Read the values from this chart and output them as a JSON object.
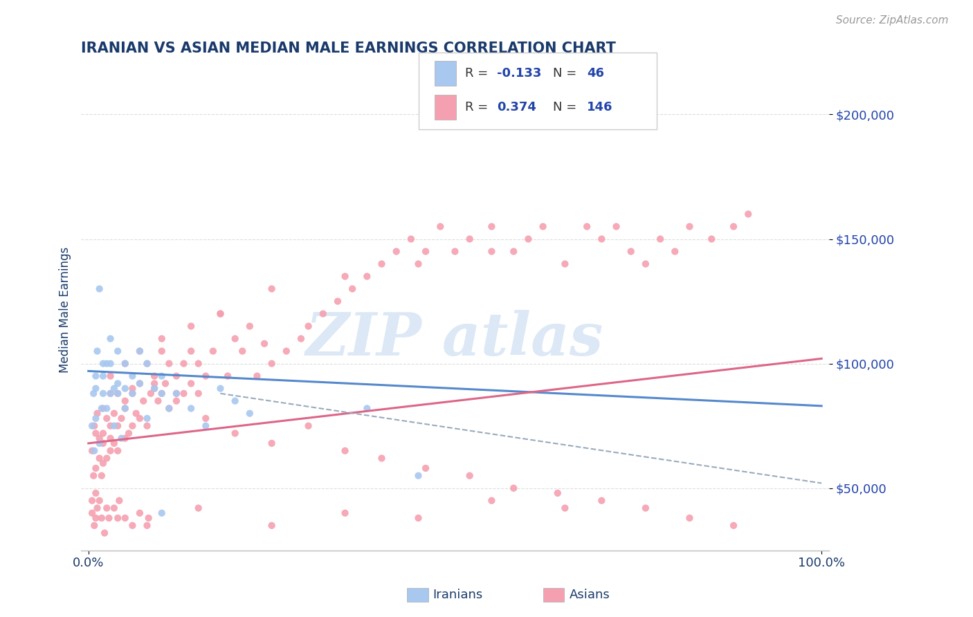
{
  "title": "IRANIAN VS ASIAN MEDIAN MALE EARNINGS CORRELATION CHART",
  "source": "Source: ZipAtlas.com",
  "ylabel": "Median Male Earnings",
  "yticks": [
    50000,
    100000,
    150000,
    200000
  ],
  "ytick_labels": [
    "$50,000",
    "$100,000",
    "$150,000",
    "$200,000"
  ],
  "xtick_labels": [
    "0.0%",
    "100.0%"
  ],
  "xlim": [
    -0.01,
    1.01
  ],
  "ylim": [
    25000,
    218000
  ],
  "legend_R_iranian": "-0.133",
  "legend_N_iranian": "46",
  "legend_R_asian": "0.374",
  "legend_N_asian": "146",
  "iranian_color": "#a8c8f0",
  "asian_color": "#f5a0b0",
  "iranian_line_color": "#5588cc",
  "asian_line_color": "#dd6688",
  "dashed_line_color": "#99aabb",
  "watermark_color": "#dce8f5",
  "title_color": "#1a3a6b",
  "tick_color": "#2244aa",
  "background_color": "#ffffff",
  "grid_color": "#dddddd",
  "iranians_x": [
    0.005,
    0.007,
    0.008,
    0.01,
    0.01,
    0.01,
    0.012,
    0.015,
    0.015,
    0.018,
    0.02,
    0.02,
    0.02,
    0.025,
    0.025,
    0.03,
    0.03,
    0.03,
    0.035,
    0.035,
    0.04,
    0.04,
    0.04,
    0.045,
    0.05,
    0.05,
    0.05,
    0.06,
    0.06,
    0.07,
    0.07,
    0.08,
    0.08,
    0.09,
    0.1,
    0.1,
    0.11,
    0.12,
    0.14,
    0.16,
    0.18,
    0.2,
    0.22,
    0.38,
    0.45,
    0.1
  ],
  "iranians_y": [
    75000,
    88000,
    65000,
    90000,
    78000,
    95000,
    105000,
    68000,
    130000,
    82000,
    100000,
    88000,
    95000,
    100000,
    82000,
    88000,
    100000,
    110000,
    75000,
    90000,
    92000,
    105000,
    88000,
    70000,
    100000,
    90000,
    82000,
    95000,
    88000,
    105000,
    92000,
    78000,
    100000,
    90000,
    88000,
    95000,
    82000,
    88000,
    82000,
    75000,
    90000,
    85000,
    80000,
    82000,
    55000,
    40000
  ],
  "asians_x": [
    0.005,
    0.005,
    0.007,
    0.008,
    0.01,
    0.01,
    0.01,
    0.012,
    0.015,
    0.015,
    0.018,
    0.02,
    0.02,
    0.02,
    0.02,
    0.025,
    0.025,
    0.03,
    0.03,
    0.03,
    0.03,
    0.035,
    0.035,
    0.04,
    0.04,
    0.04,
    0.045,
    0.05,
    0.05,
    0.05,
    0.055,
    0.06,
    0.06,
    0.065,
    0.07,
    0.07,
    0.075,
    0.08,
    0.08,
    0.085,
    0.09,
    0.09,
    0.095,
    0.1,
    0.1,
    0.105,
    0.11,
    0.11,
    0.12,
    0.12,
    0.13,
    0.13,
    0.14,
    0.14,
    0.15,
    0.15,
    0.16,
    0.17,
    0.18,
    0.19,
    0.2,
    0.21,
    0.22,
    0.23,
    0.24,
    0.25,
    0.27,
    0.29,
    0.3,
    0.32,
    0.34,
    0.36,
    0.38,
    0.4,
    0.42,
    0.44,
    0.46,
    0.48,
    0.5,
    0.52,
    0.55,
    0.58,
    0.6,
    0.62,
    0.65,
    0.68,
    0.7,
    0.72,
    0.74,
    0.76,
    0.78,
    0.8,
    0.82,
    0.85,
    0.88,
    0.9,
    0.55,
    0.45,
    0.35,
    0.25,
    0.18,
    0.14,
    0.1,
    0.07,
    0.05,
    0.03,
    0.06,
    0.09,
    0.12,
    0.16,
    0.2,
    0.25,
    0.3,
    0.35,
    0.4,
    0.46,
    0.52,
    0.58,
    0.64,
    0.7,
    0.76,
    0.82,
    0.88,
    0.65,
    0.55,
    0.45,
    0.35,
    0.25,
    0.15,
    0.08,
    0.04,
    0.025,
    0.015,
    0.01,
    0.005,
    0.008,
    0.012,
    0.018,
    0.022,
    0.028,
    0.035,
    0.042,
    0.05,
    0.06,
    0.07,
    0.082
  ],
  "asians_y": [
    65000,
    45000,
    55000,
    75000,
    58000,
    72000,
    48000,
    80000,
    62000,
    70000,
    55000,
    68000,
    82000,
    60000,
    72000,
    78000,
    62000,
    75000,
    88000,
    65000,
    70000,
    80000,
    68000,
    75000,
    88000,
    65000,
    78000,
    82000,
    70000,
    85000,
    72000,
    75000,
    90000,
    80000,
    78000,
    92000,
    85000,
    75000,
    100000,
    88000,
    90000,
    95000,
    85000,
    88000,
    105000,
    92000,
    82000,
    100000,
    88000,
    95000,
    100000,
    88000,
    92000,
    105000,
    88000,
    100000,
    95000,
    105000,
    120000,
    95000,
    110000,
    105000,
    115000,
    95000,
    108000,
    100000,
    105000,
    110000,
    115000,
    120000,
    125000,
    130000,
    135000,
    140000,
    145000,
    150000,
    145000,
    155000,
    145000,
    150000,
    155000,
    145000,
    150000,
    155000,
    140000,
    155000,
    150000,
    155000,
    145000,
    140000,
    150000,
    145000,
    155000,
    150000,
    155000,
    160000,
    145000,
    140000,
    135000,
    130000,
    120000,
    115000,
    110000,
    105000,
    100000,
    95000,
    88000,
    92000,
    85000,
    78000,
    72000,
    68000,
    75000,
    65000,
    62000,
    58000,
    55000,
    50000,
    48000,
    45000,
    42000,
    38000,
    35000,
    42000,
    45000,
    38000,
    40000,
    35000,
    42000,
    35000,
    38000,
    42000,
    45000,
    38000,
    40000,
    35000,
    42000,
    38000,
    32000,
    38000,
    42000,
    45000,
    38000,
    35000,
    40000,
    38000
  ]
}
